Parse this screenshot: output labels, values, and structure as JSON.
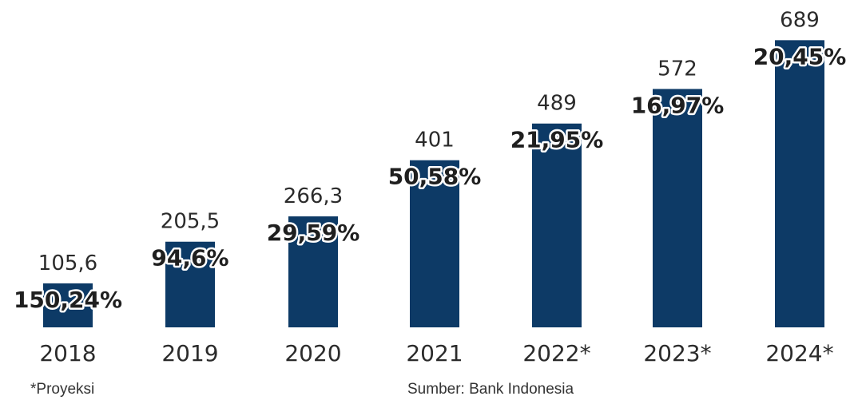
{
  "chart_data": {
    "type": "bar",
    "categories": [
      "2018",
      "2019",
      "2020",
      "2021",
      "2022*",
      "2023*",
      "2024*"
    ],
    "values": [
      105.6,
      205.5,
      266.3,
      401,
      489,
      572,
      689
    ],
    "value_labels": [
      "105,6",
      "205,5",
      "266,3",
      "401",
      "489",
      "572",
      "689"
    ],
    "growth_labels": [
      "150,24%",
      "94,6%",
      "29,59%",
      "50,58%",
      "21,95%",
      "16,97%",
      "20,45%"
    ],
    "title": "",
    "xlabel": "",
    "ylabel": "",
    "ylim": [
      0,
      720
    ],
    "grid": false,
    "bar_color": "#0d3a66"
  },
  "footnote": "*Proyeksi",
  "source": "Sumber: Bank Indonesia"
}
